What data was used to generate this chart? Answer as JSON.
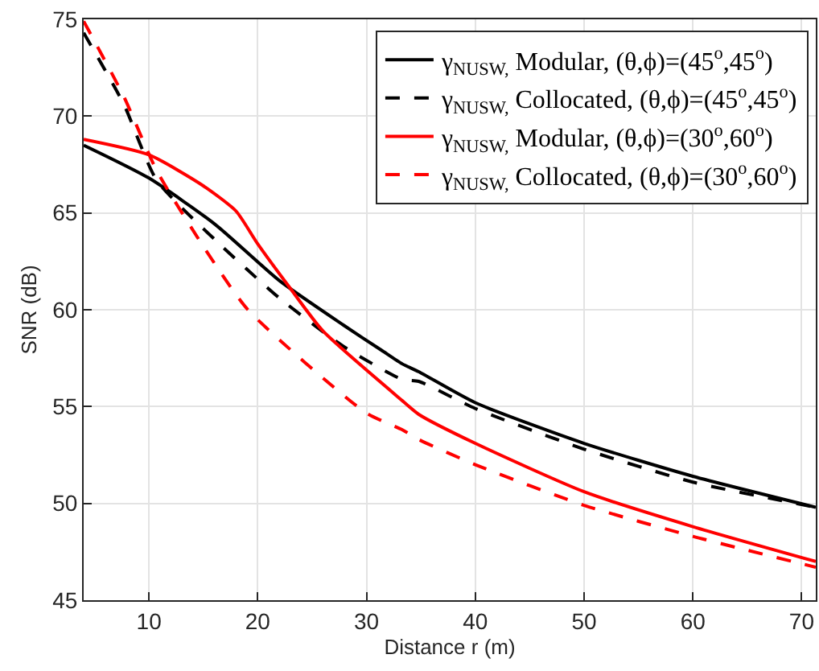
{
  "chart_data": {
    "type": "line",
    "xlabel": "Distance r (m)",
    "ylabel": "SNR (dB)",
    "xlim": [
      4,
      71.3
    ],
    "ylim": [
      45,
      75
    ],
    "xticks": [
      10,
      20,
      30,
      40,
      50,
      60,
      70
    ],
    "yticks": [
      45,
      50,
      55,
      60,
      65,
      70,
      75
    ],
    "grid": true,
    "legend": "top right",
    "marker": "none",
    "series": [
      {
        "name": "γ$_{NUSW,}$ Modular, (θ,ϕ)=(45$^{o}$,45$^{o}$)",
        "color": "#000000",
        "line_style": "solid",
        "x": [
          4,
          10,
          16.1,
          22,
          27.9,
          31.4,
          33.3,
          34.8,
          40,
          50,
          60,
          71.3
        ],
        "values": [
          68.5,
          66.8,
          64.4,
          61.5,
          59.2,
          57.9,
          57.2,
          56.8,
          55.2,
          53.1,
          51.4,
          49.8
        ]
      },
      {
        "name": "γ$_{NUSW,}$ Collocated, (θ,ϕ)=(45$^{o}$,45$^{o}$)",
        "color": "#000000",
        "line_style": "dashed",
        "x": [
          4,
          7.7,
          10.7,
          16.1,
          22,
          27.9,
          33.3,
          34.8,
          40,
          50,
          60,
          71.3
        ],
        "values": [
          74.3,
          70.6,
          66.7,
          63.6,
          60.6,
          58.1,
          56.4,
          56.3,
          54.9,
          52.8,
          51.1,
          49.8
        ]
      },
      {
        "name": "γ$_{NUSW,}$ Modular, (θ,ϕ)=(30$^{o}$,60$^{o}$)",
        "color": "#ff0000",
        "line_style": "solid",
        "x": [
          4,
          10,
          15,
          18,
          20,
          23,
          26,
          33.3,
          34.8,
          40,
          50,
          60,
          71.3
        ],
        "values": [
          68.8,
          68.0,
          66.4,
          65.1,
          63.4,
          61.1,
          58.9,
          55.3,
          54.6,
          53.1,
          50.6,
          48.8,
          47.0
        ]
      },
      {
        "name": "γ$_{NUSW,}$ Collocated, (θ,ϕ)=(30$^{o}$,60$^{o}$)",
        "color": "#ff0000",
        "line_style": "dashed",
        "x": [
          4,
          7.7,
          10.7,
          15.2,
          19.1,
          29.9,
          33.3,
          34.8,
          40,
          50,
          60,
          71.3
        ],
        "values": [
          74.9,
          71.0,
          67.2,
          63.1,
          60.0,
          54.7,
          53.8,
          53.3,
          52.0,
          49.9,
          48.3,
          46.7
        ]
      }
    ]
  }
}
